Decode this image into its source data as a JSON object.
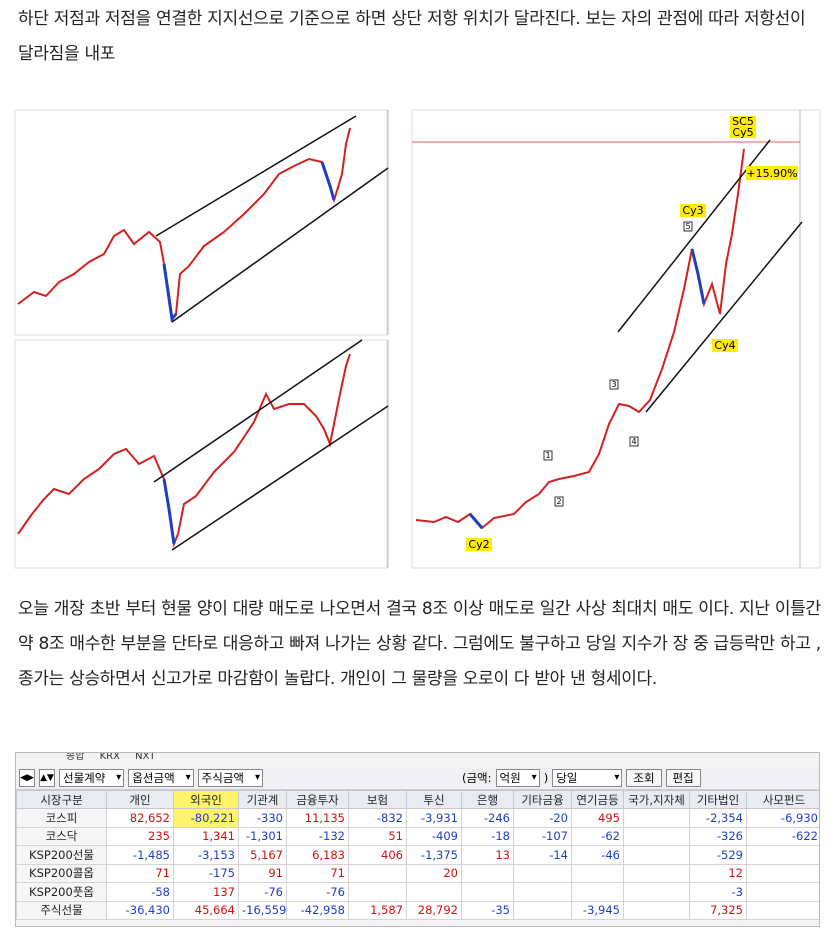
{
  "paragraphs": [
    "하단 저점과 저점을 연결한 지지선으로 기준으로 하면 상단 저항 위치가 달라진다. 보는 자의 관점에 따라 저항선이 달라짐을 내포",
    "오늘 개장 초반 부터 현물 양이 대량 매도로 나오면서 결국 8조 이상 매도로 일간 사상 최대치 매도 이다. 지난 이틀간 약 8조 매수한 부분을 단타로 대응하고 빠져 나가는 상황 같다. 그럼에도 불구하고 당일 지수가 장 중 급등락만 하고 , 종가는 상승하면서 신고가로 마감함이 놀랍다. 개인이 그 물량을 오로이 다 받아 낸 형세이다."
  ],
  "chart_image": {
    "annotations": {
      "sc5": "SC5",
      "cy5": "Cy5",
      "cy3": "Cy3",
      "cy4": "Cy4",
      "cy2": "Cy2",
      "pct": "+15.90%",
      "wave1": "1",
      "wave2": "2",
      "wave3": "3",
      "wave4": "4",
      "wave5": "5"
    }
  },
  "toolbar": {
    "radios": [
      "종합",
      "KRX",
      "NXT"
    ],
    "selects": [
      "선물계약",
      "옵션금액",
      "주식금액"
    ],
    "unit_label": "(금액:",
    "unit": "억원",
    "unit_close": ")",
    "period": "당일",
    "buttons": [
      "조회",
      "편집"
    ]
  },
  "table": {
    "headers": [
      "시장구분",
      "개인",
      "외국인",
      "기관계",
      "금융투자",
      "보험",
      "투신",
      "은행",
      "기타금융",
      "연기금등",
      "국가,지자체",
      "기타법인",
      "사모펀드"
    ],
    "rows": [
      [
        "코스피",
        "82,652",
        "-80,221",
        "-330",
        "11,135",
        "-832",
        "-3,931",
        "-246",
        "-20",
        "495",
        null,
        "-2,354",
        "-6,930"
      ],
      [
        "코스닥",
        "235",
        "1,341",
        "-1,301",
        "-132",
        "51",
        "-409",
        "-18",
        "-107",
        "-62",
        null,
        "-326",
        "-622"
      ],
      [
        "KSP200선물",
        "-1,485",
        "-3,153",
        "5,167",
        "6,183",
        "406",
        "-1,375",
        "13",
        "-14",
        "-46",
        null,
        "-529",
        null
      ],
      [
        "KSP200콜옵",
        "71",
        "-175",
        "91",
        "71",
        null,
        "20",
        null,
        null,
        null,
        null,
        "12",
        null
      ],
      [
        "KSP200풋옵",
        "-58",
        "137",
        "-76",
        "-76",
        null,
        null,
        null,
        null,
        null,
        null,
        "-3",
        null
      ],
      [
        "주식선물",
        "-36,430",
        "45,664",
        "-16,559",
        "-42,958",
        "1,587",
        "28,792",
        "-35",
        null,
        "-3,945",
        null,
        "7,325",
        null
      ]
    ]
  }
}
